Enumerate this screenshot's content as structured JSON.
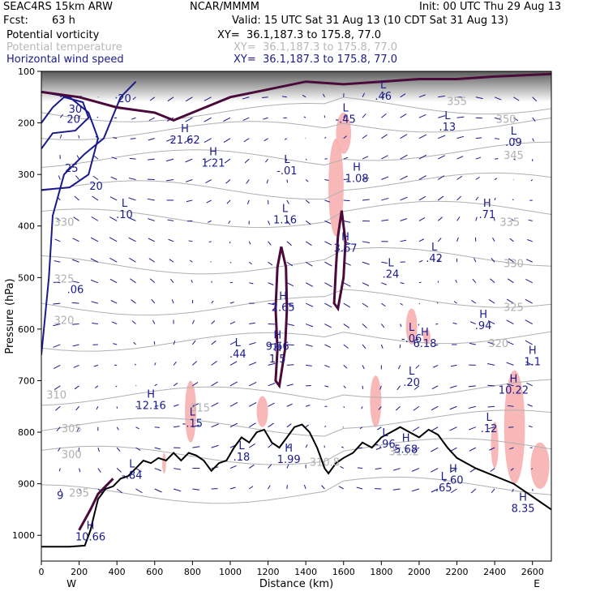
{
  "header": {
    "model": "SEAC4RS 15km ARW",
    "org": "NCAR/MMMM",
    "init": "Init: 00 UTC Thu 29 Aug 13",
    "fcst_label": "Fcst:",
    "fcst_value": "63 h",
    "valid": "Valid: 15 UTC Sat 31 Aug 13 (10 CDT Sat 31 Aug 13)",
    "fields": [
      {
        "name": "Potential vorticity",
        "xy": "XY=  36.1,187.3 to 175.8, 77.0",
        "color": "#000000"
      },
      {
        "name": "Potential temperature",
        "xy": "XY=  36.1,187.3 to 175.8, 77.0",
        "color": "#b8b8b8"
      },
      {
        "name": "Horizontal wind speed",
        "xy": "XY=  36.1,187.3 to 175.8, 77.0",
        "color": "#1a1a8c"
      }
    ]
  },
  "chart_data": {
    "type": "cross-section",
    "xlabel": "Distance (km)",
    "ylabel": "Pressure (hPa)",
    "xlim": [
      0,
      2700
    ],
    "ylim": [
      1050,
      100
    ],
    "x_ticks": [
      "0",
      "200",
      "400",
      "600",
      "800",
      "1000",
      "1200",
      "1400",
      "1600",
      "1800",
      "2000",
      "2200",
      "2400",
      "2600"
    ],
    "y_ticks": [
      "100",
      "200",
      "300",
      "400",
      "500",
      "600",
      "700",
      "800",
      "900",
      "1000"
    ],
    "x_ends": {
      "left": "W",
      "right": "E"
    },
    "colors": {
      "terrain": "#000000",
      "pv": "#4a0a3a",
      "theta": "#b0b0b0",
      "wind": "#1a1a8c",
      "shading": "#f7b0b0"
    },
    "terrain": [
      [
        0,
        1022
      ],
      [
        150,
        1022
      ],
      [
        230,
        1020
      ],
      [
        260,
        990
      ],
      [
        280,
        960
      ],
      [
        300,
        930
      ],
      [
        340,
        910
      ],
      [
        380,
        905
      ],
      [
        420,
        890
      ],
      [
        460,
        885
      ],
      [
        500,
        870
      ],
      [
        540,
        855
      ],
      [
        580,
        860
      ],
      [
        620,
        850
      ],
      [
        660,
        855
      ],
      [
        700,
        840
      ],
      [
        740,
        855
      ],
      [
        780,
        840
      ],
      [
        820,
        845
      ],
      [
        860,
        855
      ],
      [
        900,
        875
      ],
      [
        940,
        860
      ],
      [
        980,
        855
      ],
      [
        1020,
        830
      ],
      [
        1060,
        810
      ],
      [
        1100,
        820
      ],
      [
        1140,
        800
      ],
      [
        1180,
        795
      ],
      [
        1220,
        820
      ],
      [
        1260,
        830
      ],
      [
        1300,
        810
      ],
      [
        1340,
        790
      ],
      [
        1380,
        785
      ],
      [
        1420,
        800
      ],
      [
        1460,
        830
      ],
      [
        1480,
        850
      ],
      [
        1500,
        870
      ],
      [
        1520,
        880
      ],
      [
        1560,
        860
      ],
      [
        1600,
        850
      ],
      [
        1650,
        840
      ],
      [
        1700,
        820
      ],
      [
        1750,
        830
      ],
      [
        1800,
        810
      ],
      [
        1850,
        800
      ],
      [
        1900,
        790
      ],
      [
        1950,
        800
      ],
      [
        2000,
        810
      ],
      [
        2050,
        795
      ],
      [
        2100,
        805
      ],
      [
        2150,
        830
      ],
      [
        2200,
        850
      ],
      [
        2250,
        860
      ],
      [
        2300,
        870
      ],
      [
        2400,
        885
      ],
      [
        2500,
        900
      ],
      [
        2600,
        925
      ],
      [
        2700,
        950
      ]
    ],
    "wind_speed_labels": [
      {
        "x": 440,
        "p": 160,
        "v": "20"
      },
      {
        "x": 180,
        "p": 180,
        "v": "30"
      },
      {
        "x": 170,
        "p": 200,
        "v": "20"
      },
      {
        "x": 160,
        "p": 295,
        "v": "25"
      },
      {
        "x": 290,
        "p": 330,
        "v": "20"
      }
    ],
    "theta_labels": [
      {
        "x": 2200,
        "p": 165,
        "v": "355"
      },
      {
        "x": 2460,
        "p": 200,
        "v": "350"
      },
      {
        "x": 2500,
        "p": 270,
        "v": "345"
      },
      {
        "x": 2480,
        "p": 400,
        "v": "335"
      },
      {
        "x": 2500,
        "p": 480,
        "v": "330"
      },
      {
        "x": 2500,
        "p": 565,
        "v": "325"
      },
      {
        "x": 2420,
        "p": 635,
        "v": "320"
      },
      {
        "x": 120,
        "p": 400,
        "v": "330"
      },
      {
        "x": 120,
        "p": 510,
        "v": "325"
      },
      {
        "x": 120,
        "p": 590,
        "v": "320"
      },
      {
        "x": 80,
        "p": 735,
        "v": "310"
      },
      {
        "x": 160,
        "p": 800,
        "v": "305"
      },
      {
        "x": 160,
        "p": 850,
        "v": "300"
      },
      {
        "x": 200,
        "p": 925,
        "v": "295"
      },
      {
        "x": 1500,
        "p": 865,
        "v": "310.8"
      },
      {
        "x": 1920,
        "p": 845,
        "v": "313.2"
      },
      {
        "x": 840,
        "p": 760,
        "v": "315"
      }
    ],
    "extrema": [
      {
        "x": 760,
        "p": 240,
        "kind": "H",
        "v": "21.62"
      },
      {
        "x": 910,
        "p": 285,
        "kind": "H",
        "v": "1.21"
      },
      {
        "x": 1300,
        "p": 300,
        "kind": "L",
        "v": "-.01"
      },
      {
        "x": 1670,
        "p": 315,
        "kind": "H",
        "v": "1.08"
      },
      {
        "x": 440,
        "p": 385,
        "kind": "L",
        "v": ".10"
      },
      {
        "x": 1290,
        "p": 395,
        "kind": "L",
        "v": "1.16"
      },
      {
        "x": 1610,
        "p": 450,
        "kind": "H",
        "v": "3.67"
      },
      {
        "x": 2080,
        "p": 470,
        "kind": "L",
        "v": ".42"
      },
      {
        "x": 1850,
        "p": 500,
        "kind": "L",
        "v": ".24"
      },
      {
        "x": 2360,
        "p": 385,
        "kind": "H",
        "v": ".71"
      },
      {
        "x": 1280,
        "p": 565,
        "kind": "H",
        "v": "2.65"
      },
      {
        "x": 2340,
        "p": 600,
        "kind": "H",
        "v": ".94"
      },
      {
        "x": 1250,
        "p": 640,
        "kind": "H",
        "v": "9.66"
      },
      {
        "x": 1250,
        "p": 665,
        "kind": "H",
        "v": "1.5"
      },
      {
        "x": 1040,
        "p": 655,
        "kind": "L",
        "v": ".44"
      },
      {
        "x": 2030,
        "p": 635,
        "kind": "H",
        "v": "6.18"
      },
      {
        "x": 1960,
        "p": 625,
        "kind": "L",
        "v": "-.06"
      },
      {
        "x": 2600,
        "p": 670,
        "kind": "H",
        "v": "1.1"
      },
      {
        "x": 1960,
        "p": 710,
        "kind": "L",
        "v": ".20"
      },
      {
        "x": 2500,
        "p": 725,
        "kind": "H",
        "v": "10.22"
      },
      {
        "x": 580,
        "p": 755,
        "kind": "H",
        "v": "12.16"
      },
      {
        "x": 800,
        "p": 790,
        "kind": "L",
        "v": "-.15"
      },
      {
        "x": 2370,
        "p": 800,
        "kind": "L",
        "v": ".12"
      },
      {
        "x": 1060,
        "p": 855,
        "kind": "L",
        "v": ".18"
      },
      {
        "x": 1310,
        "p": 860,
        "kind": "H",
        "v": "1.99"
      },
      {
        "x": 1820,
        "p": 830,
        "kind": "L",
        "v": "-.96"
      },
      {
        "x": 1930,
        "p": 840,
        "kind": "H",
        "v": "5.68"
      },
      {
        "x": 480,
        "p": 890,
        "kind": "L",
        "v": "-.84"
      },
      {
        "x": 2180,
        "p": 900,
        "kind": "H",
        "v": "-.60"
      },
      {
        "x": 2130,
        "p": 915,
        "kind": "L",
        "v": ".65"
      },
      {
        "x": 2550,
        "p": 955,
        "kind": "H",
        "v": "8.35"
      },
      {
        "x": 260,
        "p": 1010,
        "kind": "H",
        "v": "10.66"
      },
      {
        "x": 1610,
        "p": 200,
        "kind": "L",
        "v": "-.45"
      },
      {
        "x": 1810,
        "p": 155,
        "kind": "L",
        "v": ".46"
      },
      {
        "x": 2150,
        "p": 215,
        "kind": "L",
        "v": ".13"
      },
      {
        "x": 2500,
        "p": 245,
        "kind": "L",
        "v": ".09"
      },
      {
        "x": 100,
        "p": 930,
        "kind": "",
        "v": "9"
      },
      {
        "x": 180,
        "p": 530,
        "kind": "",
        "v": ".06"
      }
    ]
  }
}
